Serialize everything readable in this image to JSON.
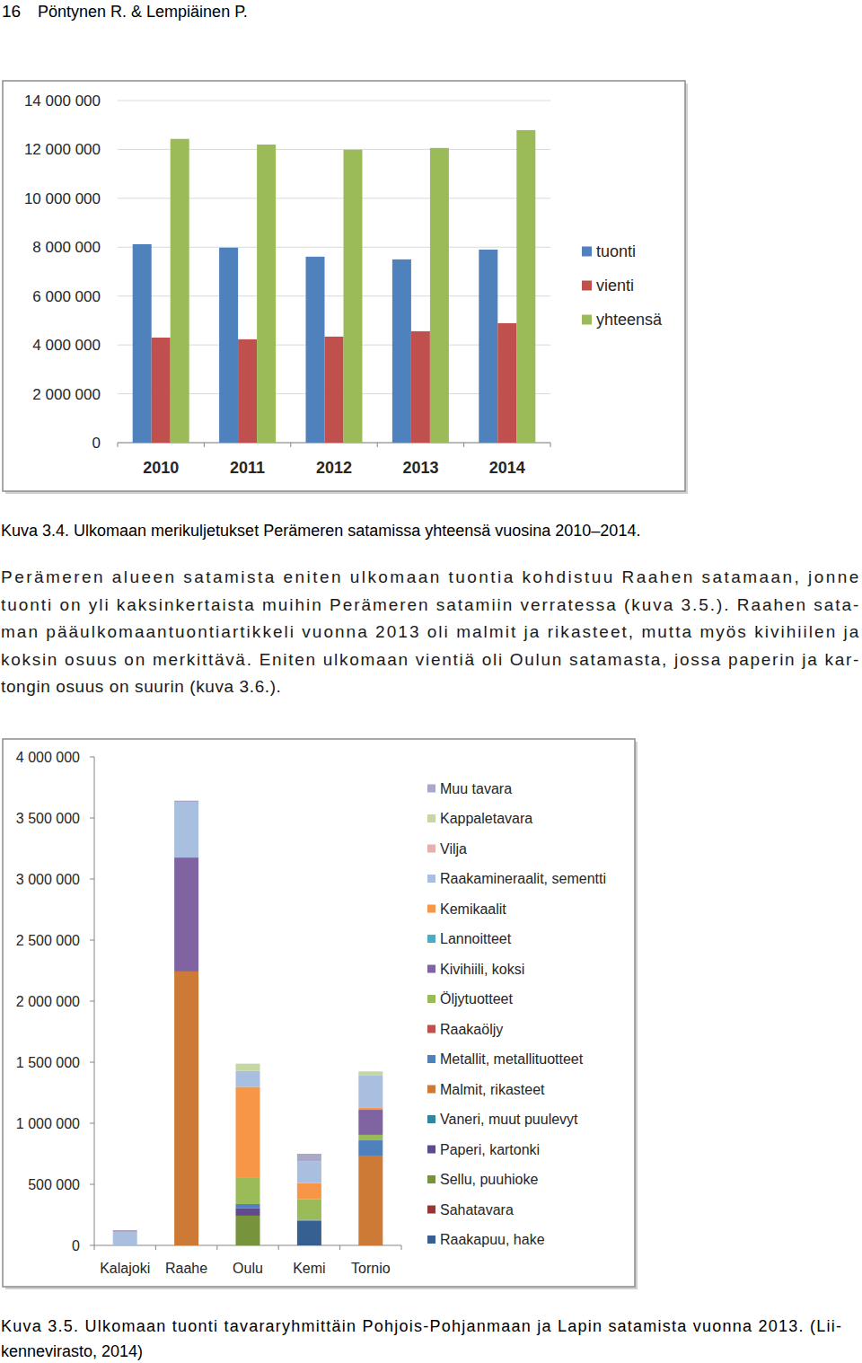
{
  "page_header": {
    "page_number": "16",
    "authors": "Pöntynen R. & Lempiäinen P."
  },
  "chart_data": [
    {
      "type": "bar",
      "categories": [
        "2010",
        "2011",
        "2012",
        "2013",
        "2014"
      ],
      "series": [
        {
          "name": "tuonti",
          "color": "#4f81bd",
          "values": [
            8120000,
            7980000,
            7610000,
            7500000,
            7900000
          ]
        },
        {
          "name": "vienti",
          "color": "#c0504d",
          "values": [
            4300000,
            4230000,
            4340000,
            4560000,
            4890000
          ]
        },
        {
          "name": "yhteensä",
          "color": "#9bbb59",
          "values": [
            12430000,
            12200000,
            11990000,
            12060000,
            12790000
          ]
        }
      ],
      "ylim": [
        0,
        14000000
      ],
      "yticks": [
        0,
        {
          "value": 2000000,
          "label": "2 000 000"
        },
        {
          "value": 4000000,
          "label": "4 000 000"
        },
        {
          "value": 6000000,
          "label": "6 000 000"
        },
        {
          "value": 8000000,
          "label": "8 000 000"
        },
        {
          "value": 10000000,
          "label": "10 000 000"
        },
        {
          "value": 12000000,
          "label": "12 000 000"
        },
        {
          "value": 14000000,
          "label": "14 000 000"
        }
      ],
      "grid": true,
      "legend": "right"
    },
    {
      "type": "bar",
      "stacked": true,
      "categories": [
        "Kalajoki",
        "Raahe",
        "Oulu",
        "Kemi",
        "Tornio"
      ],
      "series": [
        {
          "name": "Raakapuu, hake",
          "color": "#376092",
          "values": [
            0,
            0,
            0,
            200000,
            0
          ]
        },
        {
          "name": "Sahatavara",
          "color": "#953735",
          "values": [
            0,
            0,
            0,
            0,
            0
          ]
        },
        {
          "name": "Sellu, puuhioke",
          "color": "#77933c",
          "values": [
            0,
            0,
            243000,
            0,
            0
          ]
        },
        {
          "name": "Paperi, kartonki",
          "color": "#5f4b8b",
          "values": [
            0,
            0,
            60000,
            0,
            0
          ]
        },
        {
          "name": "Vaneri, muut puulevyt",
          "color": "#31859c",
          "values": [
            0,
            0,
            0,
            0,
            0
          ]
        },
        {
          "name": "Malmit, rikasteet",
          "color": "#cc7a36",
          "values": [
            0,
            2243000,
            0,
            0,
            735000
          ]
        },
        {
          "name": "Metallit, metallituotteet",
          "color": "#4f81bd",
          "values": [
            0,
            0,
            35000,
            10000,
            125000
          ]
        },
        {
          "name": "Raakaöljy",
          "color": "#c0504d",
          "values": [
            0,
            0,
            0,
            0,
            0
          ]
        },
        {
          "name": "Öljytuotteet",
          "color": "#9bbb59",
          "values": [
            0,
            0,
            220000,
            170000,
            45000
          ]
        },
        {
          "name": "Kivihiili, koksi",
          "color": "#8064a2",
          "values": [
            0,
            933000,
            0,
            0,
            205000
          ]
        },
        {
          "name": "Lannoitteet",
          "color": "#4bacc6",
          "values": [
            0,
            0,
            0,
            0,
            0
          ]
        },
        {
          "name": "Kemikaalit",
          "color": "#f79646",
          "values": [
            0,
            0,
            740000,
            130000,
            20000
          ]
        },
        {
          "name": "Raakamineraalit, sementti",
          "color": "#a8bfdf",
          "values": [
            105000,
            456000,
            130000,
            180000,
            265000
          ]
        },
        {
          "name": "Vilja",
          "color": "#e6b0b0",
          "values": [
            0,
            0,
            0,
            0,
            0
          ]
        },
        {
          "name": "Kappaletavara",
          "color": "#c4d7a4",
          "values": [
            0,
            0,
            60000,
            0,
            30000
          ]
        },
        {
          "name": "Muu tavara",
          "color": "#aaa8c9",
          "values": [
            20000,
            10000,
            0,
            60000,
            0
          ]
        }
      ],
      "ylim": [
        0,
        4000000
      ],
      "yticks": [
        0,
        {
          "value": 500000,
          "label": "500 000"
        },
        {
          "value": 1000000,
          "label": "1 000 000"
        },
        {
          "value": 1500000,
          "label": "1 500 000"
        },
        {
          "value": 2000000,
          "label": "2 000 000"
        },
        {
          "value": 2500000,
          "label": "2 500 000"
        },
        {
          "value": 3000000,
          "label": "3 000 000"
        },
        {
          "value": 3500000,
          "label": "3 500 000"
        },
        {
          "value": 4000000,
          "label": "4 000 000"
        }
      ],
      "grid": false,
      "legend": "right"
    }
  ],
  "captions": [
    [
      "Kuva 3.4. Ulkomaan merikuljetukset Perämeren satamissa yhteensä vuosina 2010–2014."
    ],
    [
      "Kuva 3.5. Ulkomaan tuonti tavararyhmittäin Pohjois-Pohjanmaan ja Lapin satamista vuonna 2013. (Lii-",
      "kennevirasto, 2014)"
    ]
  ],
  "body_text_lines": [
    "Perämeren alueen satamista eniten ulkomaan tuontia kohdistuu Raahen satamaan, jonne",
    "tuonti on yli kaksinkertaista muihin Perämeren satamiin verratessa (kuva 3.5.). Raahen sata-",
    "man pääulkomaantuontiartikkeli vuonna 2013 oli malmit ja rikasteet, mutta myös kivihiilen ja",
    "koksin osuus on merkittävä. Eniten ulkomaan vientiä oli Oulun satamasta, jossa paperin ja kar-",
    "tongin osuus on suurin (kuva 3.6.)."
  ]
}
